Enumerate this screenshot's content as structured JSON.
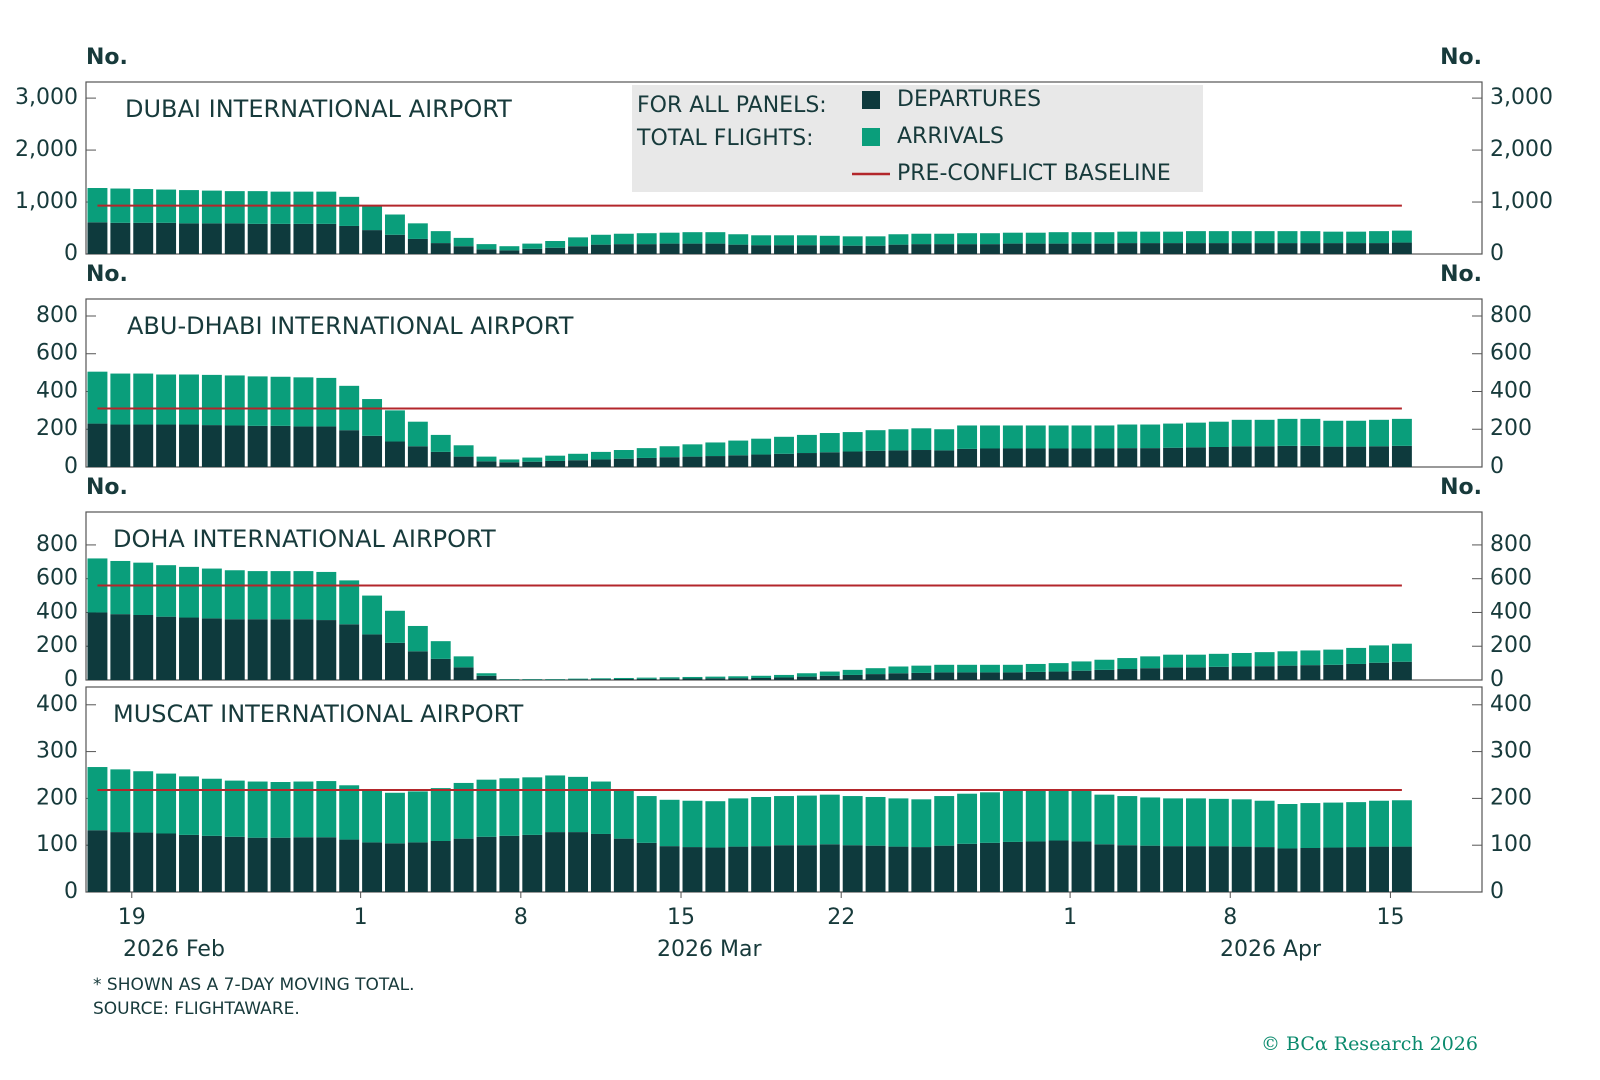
{
  "legend": {
    "title": [
      "FOR ALL PANELS:",
      "TOTAL FLIGHTS:"
    ],
    "entries": [
      {
        "name": "DEPARTURES",
        "color": "#0e3a3d"
      },
      {
        "name": "ARRIVALS",
        "color": "#0a9e7b"
      },
      {
        "name": "PRE-CONFLICT BASELINE",
        "color": "#b3262b"
      }
    ]
  },
  "notes": [
    "* SHOWN AS A 7-DAY MOVING TOTAL.",
    "SOURCE: FLIGHTAWARE."
  ],
  "copyright": "© BCα Research 2026",
  "chart_data": [
    {
      "type": "bar",
      "title": "DUBAI INTERNATIONAL AIRPORT",
      "y_unit": "No.",
      "xlim": [
        "2026-02-17",
        "2026-04-19"
      ],
      "ylim": [
        0,
        3310
      ],
      "yticks": [
        0,
        {
          "value": 1000,
          "label": "1,000"
        },
        {
          "value": 2000,
          "label": "2,000"
        },
        {
          "value": 3000,
          "label": "3,000"
        }
      ],
      "baseline": 930,
      "x": [
        "2026-02-17",
        "2026-02-18",
        "2026-02-19",
        "2026-02-20",
        "2026-02-21",
        "2026-02-22",
        "2026-02-23",
        "2026-02-24",
        "2026-02-25",
        "2026-02-26",
        "2026-02-27",
        "2026-02-28",
        "2026-03-01",
        "2026-03-02",
        "2026-03-03",
        "2026-03-04",
        "2026-03-05",
        "2026-03-06",
        "2026-03-07",
        "2026-03-08",
        "2026-03-09",
        "2026-03-10",
        "2026-03-11",
        "2026-03-12",
        "2026-03-13",
        "2026-03-14",
        "2026-03-15",
        "2026-03-16",
        "2026-03-17",
        "2026-03-18",
        "2026-03-19",
        "2026-03-20",
        "2026-03-21",
        "2026-03-22",
        "2026-03-23",
        "2026-03-24",
        "2026-03-25",
        "2026-03-26",
        "2026-03-27",
        "2026-03-28",
        "2026-03-29",
        "2026-03-30",
        "2026-03-31",
        "2026-04-01",
        "2026-04-02",
        "2026-04-03",
        "2026-04-04",
        "2026-04-05",
        "2026-04-06",
        "2026-04-07",
        "2026-04-08",
        "2026-04-09",
        "2026-04-10",
        "2026-04-11",
        "2026-04-12",
        "2026-04-13",
        "2026-04-14",
        "2026-04-15"
      ],
      "series": [
        {
          "values": [
            610,
            600,
            600,
            600,
            590,
            590,
            590,
            580,
            580,
            580,
            580,
            540,
            460,
            370,
            290,
            210,
            150,
            90,
            70,
            100,
            120,
            150,
            180,
            190,
            190,
            200,
            200,
            200,
            180,
            170,
            170,
            170,
            170,
            160,
            160,
            180,
            190,
            190,
            190,
            190,
            200,
            200,
            200,
            200,
            200,
            210,
            210,
            210,
            210,
            210,
            210,
            210,
            210,
            210,
            210,
            210,
            210,
            220
          ]
        },
        {
          "values": [
            660,
            660,
            650,
            640,
            640,
            630,
            620,
            630,
            620,
            620,
            620,
            560,
            480,
            390,
            300,
            230,
            160,
            100,
            80,
            100,
            130,
            170,
            190,
            200,
            210,
            210,
            220,
            220,
            200,
            190,
            190,
            190,
            180,
            180,
            180,
            200,
            200,
            200,
            210,
            210,
            210,
            210,
            220,
            220,
            220,
            220,
            220,
            220,
            230,
            230,
            230,
            230,
            230,
            230,
            220,
            220,
            230,
            230
          ]
        }
      ]
    },
    {
      "type": "bar",
      "title": "ABU-DHABI INTERNATIONAL AIRPORT",
      "y_unit": "No.",
      "xlim": [
        "2026-02-17",
        "2026-04-19"
      ],
      "ylim": [
        0,
        890
      ],
      "yticks": [
        0,
        200,
        400,
        600,
        800
      ],
      "baseline": 310,
      "x": [
        "2026-02-17",
        "2026-02-18",
        "2026-02-19",
        "2026-02-20",
        "2026-02-21",
        "2026-02-22",
        "2026-02-23",
        "2026-02-24",
        "2026-02-25",
        "2026-02-26",
        "2026-02-27",
        "2026-02-28",
        "2026-03-01",
        "2026-03-02",
        "2026-03-03",
        "2026-03-04",
        "2026-03-05",
        "2026-03-06",
        "2026-03-07",
        "2026-03-08",
        "2026-03-09",
        "2026-03-10",
        "2026-03-11",
        "2026-03-12",
        "2026-03-13",
        "2026-03-14",
        "2026-03-15",
        "2026-03-16",
        "2026-03-17",
        "2026-03-18",
        "2026-03-19",
        "2026-03-20",
        "2026-03-21",
        "2026-03-22",
        "2026-03-23",
        "2026-03-24",
        "2026-03-25",
        "2026-03-26",
        "2026-03-27",
        "2026-03-28",
        "2026-03-29",
        "2026-03-30",
        "2026-03-31",
        "2026-04-01",
        "2026-04-02",
        "2026-04-03",
        "2026-04-04",
        "2026-04-05",
        "2026-04-06",
        "2026-04-07",
        "2026-04-08",
        "2026-04-09",
        "2026-04-10",
        "2026-04-11",
        "2026-04-12",
        "2026-04-13",
        "2026-04-14",
        "2026-04-15"
      ],
      "series": [
        {
          "values": [
            230,
            225,
            225,
            225,
            225,
            222,
            220,
            218,
            218,
            215,
            215,
            195,
            165,
            135,
            110,
            80,
            55,
            30,
            25,
            28,
            32,
            36,
            40,
            44,
            48,
            52,
            55,
            58,
            62,
            66,
            70,
            74,
            78,
            82,
            86,
            88,
            90,
            88,
            96,
            98,
            98,
            98,
            98,
            98,
            98,
            100,
            100,
            102,
            104,
            106,
            110,
            110,
            112,
            112,
            108,
            108,
            110,
            112
          ]
        },
        {
          "values": [
            275,
            270,
            270,
            265,
            265,
            266,
            265,
            262,
            260,
            260,
            257,
            235,
            195,
            165,
            130,
            90,
            60,
            25,
            15,
            22,
            28,
            34,
            40,
            46,
            52,
            58,
            65,
            72,
            78,
            84,
            90,
            96,
            102,
            103,
            109,
            112,
            115,
            112,
            124,
            122,
            122,
            122,
            122,
            122,
            122,
            125,
            125,
            128,
            131,
            134,
            140,
            140,
            143,
            143,
            137,
            137,
            140,
            143
          ]
        }
      ]
    },
    {
      "type": "bar",
      "title": "DOHA INTERNATIONAL AIRPORT",
      "y_unit": "No.",
      "xlim": [
        "2026-02-17",
        "2026-04-19"
      ],
      "ylim": [
        0,
        995
      ],
      "yticks": [
        0,
        200,
        400,
        600,
        800
      ],
      "baseline": 560,
      "x": [
        "2026-02-17",
        "2026-02-18",
        "2026-02-19",
        "2026-02-20",
        "2026-02-21",
        "2026-02-22",
        "2026-02-23",
        "2026-02-24",
        "2026-02-25",
        "2026-02-26",
        "2026-02-27",
        "2026-02-28",
        "2026-03-01",
        "2026-03-02",
        "2026-03-03",
        "2026-03-04",
        "2026-03-05",
        "2026-03-06",
        "2026-03-07",
        "2026-03-08",
        "2026-03-09",
        "2026-03-10",
        "2026-03-11",
        "2026-03-12",
        "2026-03-13",
        "2026-03-14",
        "2026-03-15",
        "2026-03-16",
        "2026-03-17",
        "2026-03-18",
        "2026-03-19",
        "2026-03-20",
        "2026-03-21",
        "2026-03-22",
        "2026-03-23",
        "2026-03-24",
        "2026-03-25",
        "2026-03-26",
        "2026-03-27",
        "2026-03-28",
        "2026-03-29",
        "2026-03-30",
        "2026-03-31",
        "2026-04-01",
        "2026-04-02",
        "2026-04-03",
        "2026-04-04",
        "2026-04-05",
        "2026-04-06",
        "2026-04-07",
        "2026-04-08",
        "2026-04-09",
        "2026-04-10",
        "2026-04-11",
        "2026-04-12",
        "2026-04-13",
        "2026-04-14",
        "2026-04-15"
      ],
      "series": [
        {
          "values": [
            400,
            390,
            385,
            375,
            370,
            365,
            360,
            360,
            360,
            360,
            355,
            330,
            270,
            220,
            170,
            125,
            75,
            25,
            2,
            2,
            2,
            4,
            5,
            6,
            7,
            8,
            9,
            10,
            11,
            12,
            15,
            20,
            25,
            30,
            35,
            40,
            42,
            45,
            45,
            45,
            45,
            48,
            50,
            55,
            60,
            65,
            70,
            75,
            75,
            78,
            80,
            82,
            85,
            88,
            90,
            95,
            102,
            108
          ]
        },
        {
          "values": [
            320,
            315,
            310,
            305,
            300,
            295,
            290,
            285,
            285,
            285,
            285,
            260,
            230,
            190,
            150,
            105,
            65,
            15,
            3,
            3,
            3,
            4,
            5,
            6,
            7,
            8,
            9,
            10,
            11,
            13,
            15,
            20,
            25,
            30,
            35,
            40,
            43,
            45,
            45,
            45,
            45,
            47,
            50,
            55,
            60,
            65,
            70,
            75,
            75,
            77,
            80,
            83,
            85,
            87,
            90,
            95,
            103,
            107
          ]
        }
      ]
    },
    {
      "type": "bar",
      "title": "MUSCAT INTERNATIONAL AIRPORT",
      "xlim": [
        "2026-02-17",
        "2026-04-19"
      ],
      "ylim": [
        0,
        438
      ],
      "yticks": [
        0,
        100,
        200,
        300,
        400
      ],
      "baseline": 218,
      "xticks": [
        {
          "value": "2026-02-19",
          "label": "19"
        },
        {
          "value": "2026-03-01",
          "label": "1"
        },
        {
          "value": "2026-03-08",
          "label": "8"
        },
        {
          "value": "2026-03-15",
          "label": "15"
        },
        {
          "value": "2026-03-22",
          "label": "22"
        },
        {
          "value": "2026-04-01",
          "label": "1"
        },
        {
          "value": "2026-04-08",
          "label": "8"
        },
        {
          "value": "2026-04-15",
          "label": "15"
        }
      ],
      "month_labels": [
        "2026 Feb",
        "2026 Mar",
        "2026 Apr"
      ],
      "x": [
        "2026-02-17",
        "2026-02-18",
        "2026-02-19",
        "2026-02-20",
        "2026-02-21",
        "2026-02-22",
        "2026-02-23",
        "2026-02-24",
        "2026-02-25",
        "2026-02-26",
        "2026-02-27",
        "2026-02-28",
        "2026-03-01",
        "2026-03-02",
        "2026-03-03",
        "2026-03-04",
        "2026-03-05",
        "2026-03-06",
        "2026-03-07",
        "2026-03-08",
        "2026-03-09",
        "2026-03-10",
        "2026-03-11",
        "2026-03-12",
        "2026-03-13",
        "2026-03-14",
        "2026-03-15",
        "2026-03-16",
        "2026-03-17",
        "2026-03-18",
        "2026-03-19",
        "2026-03-20",
        "2026-03-21",
        "2026-03-22",
        "2026-03-23",
        "2026-03-24",
        "2026-03-25",
        "2026-03-26",
        "2026-03-27",
        "2026-03-28",
        "2026-03-29",
        "2026-03-30",
        "2026-03-31",
        "2026-04-01",
        "2026-04-02",
        "2026-04-03",
        "2026-04-04",
        "2026-04-05",
        "2026-04-06",
        "2026-04-07",
        "2026-04-08",
        "2026-04-09",
        "2026-04-10",
        "2026-04-11",
        "2026-04-12",
        "2026-04-13",
        "2026-04-14",
        "2026-04-15"
      ],
      "series": [
        {
          "values": [
            132,
            128,
            127,
            125,
            122,
            120,
            118,
            116,
            116,
            117,
            117,
            112,
            106,
            104,
            106,
            109,
            114,
            118,
            120,
            122,
            128,
            128,
            124,
            114,
            105,
            98,
            96,
            95,
            97,
            98,
            100,
            100,
            102,
            100,
            99,
            97,
            96,
            99,
            103,
            105,
            107,
            108,
            110,
            108,
            102,
            100,
            99,
            98,
            98,
            98,
            97,
            96,
            93,
            94,
            95,
            96,
            97,
            97
          ]
        },
        {
          "values": [
            135,
            134,
            131,
            128,
            125,
            122,
            120,
            120,
            119,
            119,
            120,
            116,
            112,
            108,
            109,
            113,
            119,
            122,
            123,
            123,
            121,
            118,
            112,
            104,
            100,
            99,
            99,
            99,
            103,
            105,
            105,
            106,
            106,
            105,
            104,
            103,
            102,
            106,
            107,
            108,
            109,
            110,
            108,
            108,
            106,
            105,
            103,
            102,
            102,
            101,
            101,
            99,
            95,
            96,
            96,
            96,
            98,
            99
          ]
        }
      ]
    }
  ]
}
